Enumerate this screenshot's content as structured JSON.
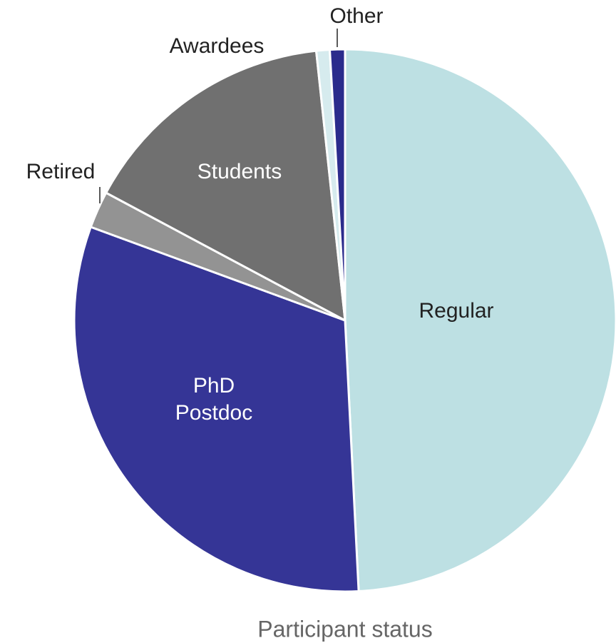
{
  "chart_data": {
    "type": "pie",
    "title": "Participant status",
    "categories": [
      "Regular",
      "PhD Postdoc",
      "Retired",
      "Students",
      "Awardees",
      "Other"
    ],
    "values": [
      49.2,
      31.4,
      2.2,
      15.5,
      0.8,
      0.9
    ],
    "colors": [
      "#bde0e3",
      "#353596",
      "#939393",
      "#707070",
      "#d6ebee",
      "#2b2b8c"
    ]
  }
}
